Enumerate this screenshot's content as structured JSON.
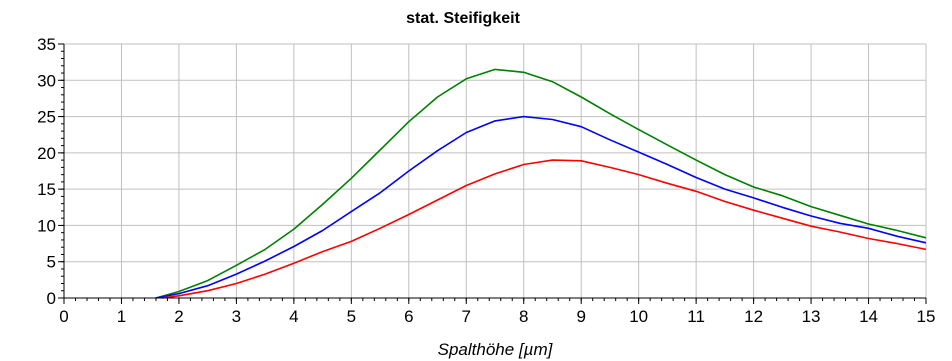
{
  "chart_data": {
    "type": "line",
    "title": "stat. Steifigkeit",
    "xlabel": "Spalthöhe [µm]",
    "ylabel": "",
    "xlim": [
      0,
      15
    ],
    "ylim": [
      0,
      35
    ],
    "xticks": [
      0,
      1,
      2,
      3,
      4,
      5,
      6,
      7,
      8,
      9,
      10,
      11,
      12,
      13,
      14,
      15
    ],
    "yticks": [
      0,
      5,
      10,
      15,
      20,
      25,
      30,
      35
    ],
    "grid": true,
    "legend": "none",
    "series": [
      {
        "color": "#008000",
        "x": [
          1.6,
          2,
          2.5,
          3,
          3.5,
          4,
          4.5,
          5,
          5.5,
          6,
          6.5,
          7,
          7.5,
          8,
          8.5,
          9,
          9.5,
          10,
          10.5,
          11,
          11.5,
          12,
          12.5,
          13,
          13.5,
          14,
          14.5,
          15
        ],
        "y": [
          0,
          0.9,
          2.4,
          4.5,
          6.7,
          9.5,
          12.9,
          16.5,
          20.4,
          24.3,
          27.7,
          30.2,
          31.5,
          31.1,
          29.8,
          27.7,
          25.4,
          23.2,
          21.1,
          19.0,
          17.0,
          15.3,
          14.1,
          12.6,
          11.4,
          10.2,
          9.3,
          8.3
        ]
      },
      {
        "color": "#0000ff",
        "x": [
          1.6,
          2,
          2.5,
          3,
          3.5,
          4,
          4.5,
          5,
          5.5,
          6,
          6.5,
          7,
          7.5,
          8,
          8.5,
          9,
          9.5,
          10,
          10.5,
          11,
          11.5,
          12,
          12.5,
          13,
          13.5,
          14,
          14.5,
          15
        ],
        "y": [
          0,
          0.6,
          1.7,
          3.3,
          5.1,
          7.1,
          9.3,
          11.9,
          14.5,
          17.5,
          20.3,
          22.8,
          24.4,
          25.0,
          24.6,
          23.6,
          21.8,
          20.1,
          18.4,
          16.6,
          15.0,
          13.8,
          12.5,
          11.3,
          10.3,
          9.6,
          8.5,
          7.6
        ]
      },
      {
        "color": "#ff0000",
        "x": [
          1.7,
          2,
          2.5,
          3,
          3.5,
          4,
          4.5,
          5,
          5.5,
          6,
          6.5,
          7,
          7.5,
          8,
          8.5,
          9,
          9.5,
          10,
          10.5,
          11,
          11.5,
          12,
          12.5,
          13,
          13.5,
          14,
          14.5,
          15
        ],
        "y": [
          0,
          0.3,
          1.0,
          2.0,
          3.3,
          4.8,
          6.4,
          7.8,
          9.6,
          11.5,
          13.5,
          15.5,
          17.1,
          18.4,
          19.0,
          18.9,
          18.0,
          17.0,
          15.8,
          14.7,
          13.3,
          12.1,
          11.0,
          9.9,
          9.1,
          8.2,
          7.5,
          6.7
        ]
      }
    ]
  }
}
